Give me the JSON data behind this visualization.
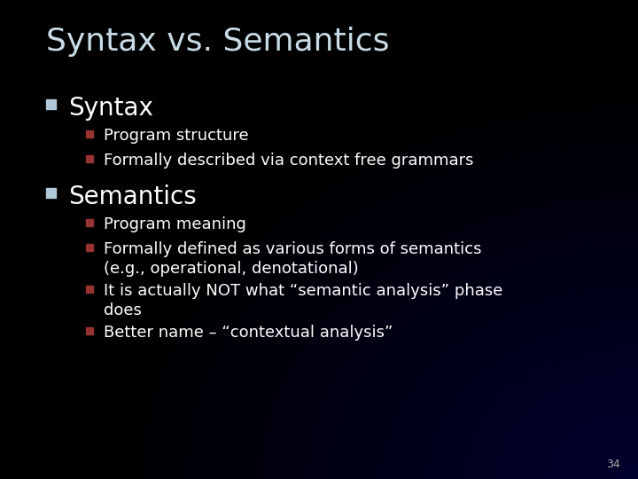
{
  "title": "Syntax vs. Semantics",
  "background_color": "#000000",
  "title_color": "#c8dce8",
  "text_color": "#ffffff",
  "bullet_color": "#b0c8d8",
  "sub_bullet_color": "#993333",
  "slide_number": "34",
  "title_fontsize": 26,
  "section_fontsize": 20,
  "item_fontsize": 13,
  "slide_num_fontsize": 9,
  "sections": [
    {
      "label": "Syntax",
      "items": [
        [
          "Program structure"
        ],
        [
          "Formally described via context free grammars"
        ]
      ]
    },
    {
      "label": "Semantics",
      "items": [
        [
          "Program meaning"
        ],
        [
          "Formally defined as various forms of semantics",
          "(e.g., operational, denotational)"
        ],
        [
          "It is actually NOT what “semantic analysis” phase",
          "does"
        ],
        [
          "Better name – “contextual analysis”"
        ]
      ]
    }
  ]
}
